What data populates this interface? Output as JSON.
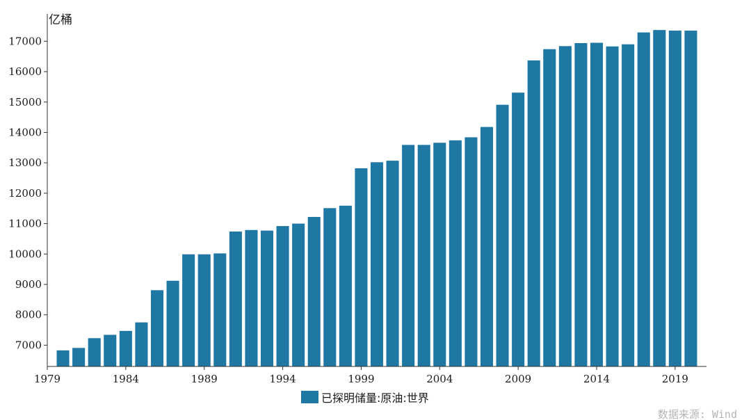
{
  "chart_data": {
    "type": "bar",
    "ylabel": "亿桶",
    "categories": [
      "1980",
      "1981",
      "1982",
      "1983",
      "1984",
      "1985",
      "1986",
      "1987",
      "1988",
      "1989",
      "1990",
      "1991",
      "1992",
      "1993",
      "1994",
      "1995",
      "1996",
      "1997",
      "1998",
      "1999",
      "2000",
      "2001",
      "2002",
      "2003",
      "2004",
      "2005",
      "2006",
      "2007",
      "2008",
      "2009",
      "2010",
      "2011",
      "2012",
      "2013",
      "2014",
      "2015",
      "2016",
      "2017",
      "2018",
      "2019",
      "2020"
    ],
    "series": [
      {
        "name": "已探明储量:原油:世界",
        "color": "#1f77a4",
        "values": [
          6830,
          6910,
          7230,
          7340,
          7470,
          7750,
          8810,
          9120,
          9990,
          9990,
          10020,
          10740,
          10790,
          10770,
          10920,
          11000,
          11220,
          11510,
          11590,
          12820,
          13020,
          13070,
          13590,
          13590,
          13660,
          13740,
          13840,
          14180,
          14910,
          15310,
          16370,
          16740,
          16840,
          16940,
          16950,
          16830,
          16900,
          17290,
          17370,
          17350,
          17350
        ]
      }
    ],
    "xlim": [
      1979,
      2021
    ],
    "ylim": [
      6300,
      17900
    ],
    "x_ticks": [
      "1979",
      "1984",
      "1989",
      "1994",
      "1999",
      "2004",
      "2009",
      "2014",
      "2019"
    ],
    "y_ticks": [
      "7000",
      "8000",
      "9000",
      "10000",
      "11000",
      "12000",
      "13000",
      "14000",
      "15000",
      "16000",
      "17000"
    ],
    "legend_position": "bottom-center",
    "grid": false
  },
  "source_note": "数据来源: Wind"
}
